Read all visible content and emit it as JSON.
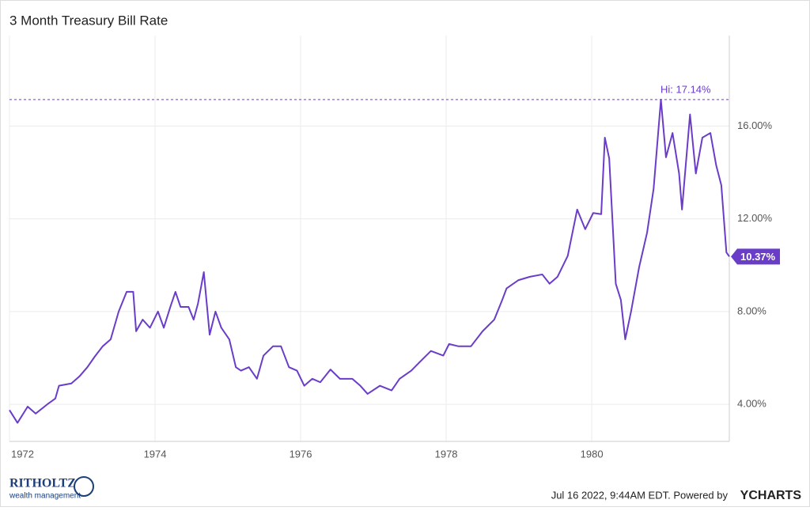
{
  "chart_data": {
    "type": "line",
    "title": "3 Month Treasury Bill Rate",
    "x": [
      1972.0,
      1972.11,
      1972.25,
      1972.36,
      1972.52,
      1972.63,
      1972.68,
      1972.85,
      1972.96,
      1973.07,
      1973.17,
      1973.28,
      1973.39,
      1973.5,
      1973.61,
      1973.7,
      1973.74,
      1973.83,
      1973.93,
      1974.04,
      1974.12,
      1974.21,
      1974.28,
      1974.35,
      1974.46,
      1974.53,
      1974.59,
      1974.67,
      1974.75,
      1974.83,
      1974.91,
      1975.02,
      1975.11,
      1975.18,
      1975.29,
      1975.4,
      1975.49,
      1975.62,
      1975.73,
      1975.84,
      1975.95,
      1976.05,
      1976.16,
      1976.27,
      1976.41,
      1976.54,
      1976.71,
      1976.82,
      1976.92,
      1977.09,
      1977.25,
      1977.36,
      1977.52,
      1977.63,
      1977.79,
      1977.96,
      1978.04,
      1978.17,
      1978.34,
      1978.5,
      1978.66,
      1978.77,
      1978.83,
      1978.99,
      1979.15,
      1979.32,
      1979.42,
      1979.53,
      1979.67,
      1979.8,
      1979.91,
      1980.02,
      1980.13,
      1980.18,
      1980.24,
      1980.33,
      1980.4,
      1980.46,
      1980.54,
      1980.65,
      1980.76,
      1980.85,
      1980.95,
      1981.02,
      1981.11,
      1981.2,
      1981.24,
      1981.35,
      1981.43,
      1981.52,
      1981.63,
      1981.71,
      1981.78,
      1981.85,
      1981.89
    ],
    "series": [
      {
        "name": "3 Month Treasury Bill Rate",
        "color": "#6a3dc8",
        "values": [
          3.75,
          3.2,
          3.9,
          3.6,
          4.0,
          4.25,
          4.8,
          4.9,
          5.2,
          5.6,
          6.05,
          6.5,
          6.8,
          8.0,
          8.85,
          8.85,
          7.15,
          7.65,
          7.3,
          8.0,
          7.3,
          8.2,
          8.85,
          8.2,
          8.2,
          7.65,
          8.35,
          9.7,
          7.0,
          8.0,
          7.3,
          6.8,
          5.6,
          5.45,
          5.6,
          5.1,
          6.1,
          6.5,
          6.5,
          5.6,
          5.45,
          4.8,
          5.1,
          4.95,
          5.5,
          5.1,
          5.1,
          4.8,
          4.45,
          4.8,
          4.6,
          5.1,
          5.45,
          5.8,
          6.3,
          6.1,
          6.6,
          6.5,
          6.5,
          7.15,
          7.65,
          8.5,
          9.0,
          9.35,
          9.5,
          9.6,
          9.2,
          9.5,
          10.4,
          12.4,
          11.55,
          12.25,
          12.2,
          15.5,
          14.6,
          9.2,
          8.5,
          6.8,
          8.0,
          9.9,
          11.4,
          13.3,
          17.14,
          14.65,
          15.7,
          13.95,
          12.4,
          16.5,
          13.95,
          15.5,
          15.7,
          14.3,
          13.45,
          10.55,
          10.37
        ]
      }
    ],
    "xlim": [
      1972.0,
      1981.89
    ],
    "xticks": [
      1972,
      1974,
      1976,
      1978,
      1980
    ],
    "ylim": [
      2.4,
      19.9
    ],
    "yticks": [
      {
        "value": 4,
        "label": "4.00%"
      },
      {
        "value": 8,
        "label": "8.00%"
      },
      {
        "value": 12,
        "label": "12.00%"
      },
      {
        "value": 16,
        "label": "16.00%"
      }
    ],
    "grid": true,
    "high": {
      "value": 17.14,
      "label": "Hi: 17.14%"
    },
    "last": {
      "value": 10.37,
      "label": "10.37%"
    },
    "footer": {
      "timestamp": "Jul 16 2022, 9:44AM EDT. Powered by",
      "brand": "YCHARTS",
      "logo_name": "RITHOLTZ",
      "logo_sub": "wealth management"
    }
  }
}
